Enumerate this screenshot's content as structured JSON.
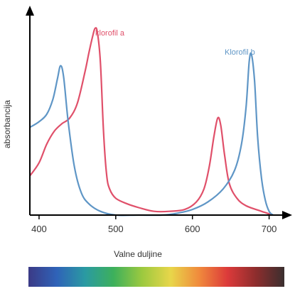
{
  "chart_data": {
    "type": "line",
    "title": "",
    "xlabel": "Valne duljine",
    "ylabel": "absorbancija",
    "xlim": [
      388,
      718
    ],
    "ylim": [
      0,
      1
    ],
    "x_ticks": [
      400,
      500,
      600,
      700
    ],
    "y_ticks": [],
    "grid": false,
    "legend": "none",
    "series": [
      {
        "name": "klorofil a",
        "color": "#e0506a",
        "points": [
          [
            388,
            0.21
          ],
          [
            400,
            0.28
          ],
          [
            410,
            0.38
          ],
          [
            420,
            0.45
          ],
          [
            430,
            0.49
          ],
          [
            440,
            0.52
          ],
          [
            450,
            0.6
          ],
          [
            460,
            0.77
          ],
          [
            465,
            0.87
          ],
          [
            470,
            0.96
          ],
          [
            473,
            1.0
          ],
          [
            476,
            0.98
          ],
          [
            480,
            0.82
          ],
          [
            484,
            0.45
          ],
          [
            488,
            0.22
          ],
          [
            492,
            0.14
          ],
          [
            500,
            0.09
          ],
          [
            515,
            0.06
          ],
          [
            530,
            0.04
          ],
          [
            550,
            0.02
          ],
          [
            570,
            0.02
          ],
          [
            590,
            0.03
          ],
          [
            605,
            0.07
          ],
          [
            615,
            0.14
          ],
          [
            622,
            0.26
          ],
          [
            628,
            0.42
          ],
          [
            633,
            0.52
          ],
          [
            637,
            0.48
          ],
          [
            642,
            0.32
          ],
          [
            648,
            0.17
          ],
          [
            658,
            0.09
          ],
          [
            670,
            0.05
          ],
          [
            690,
            0.02
          ],
          [
            705,
            0.0
          ]
        ]
      },
      {
        "name": "Klorofil b",
        "color": "#5f96c6",
        "points": [
          [
            388,
            0.47
          ],
          [
            400,
            0.5
          ],
          [
            410,
            0.54
          ],
          [
            418,
            0.62
          ],
          [
            424,
            0.73
          ],
          [
            428,
            0.8
          ],
          [
            432,
            0.74
          ],
          [
            438,
            0.5
          ],
          [
            446,
            0.26
          ],
          [
            455,
            0.12
          ],
          [
            465,
            0.06
          ],
          [
            480,
            0.02
          ],
          [
            500,
            0.0
          ],
          [
            530,
            0.0
          ],
          [
            560,
            0.0
          ],
          [
            580,
            0.01
          ],
          [
            600,
            0.03
          ],
          [
            620,
            0.07
          ],
          [
            640,
            0.14
          ],
          [
            655,
            0.24
          ],
          [
            664,
            0.38
          ],
          [
            670,
            0.58
          ],
          [
            674,
            0.82
          ],
          [
            677,
            0.86
          ],
          [
            681,
            0.72
          ],
          [
            685,
            0.42
          ],
          [
            690,
            0.2
          ],
          [
            695,
            0.08
          ],
          [
            700,
            0.02
          ],
          [
            705,
            0.0
          ]
        ]
      }
    ],
    "spectrum_bar": {
      "gradient": [
        "#3b3a86",
        "#2f63b8",
        "#2a9aa2",
        "#3db05b",
        "#9cc93f",
        "#e8d64a",
        "#f08a3c",
        "#dc3a3a",
        "#8d2d2d",
        "#3a2f2f"
      ]
    }
  }
}
